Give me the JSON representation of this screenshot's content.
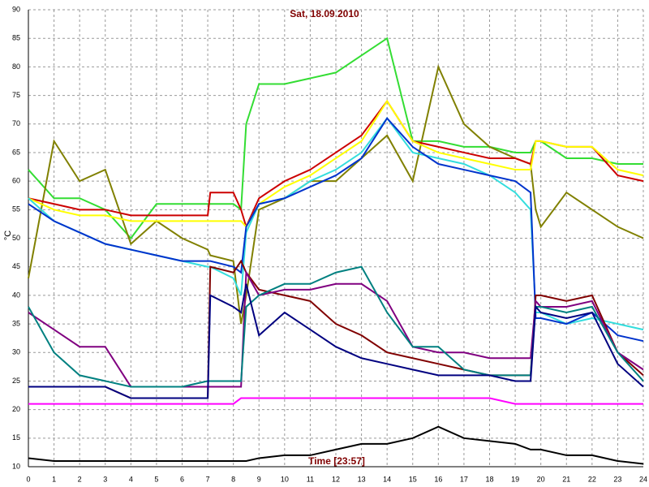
{
  "chart_data": {
    "type": "line",
    "title": "Sat, 18.09.2010",
    "y_label": "°C",
    "x_label": "Time [23:57]",
    "x": [
      0,
      1,
      2,
      3,
      4,
      5,
      6,
      7,
      7.1,
      8,
      8.3,
      8.5,
      9,
      10,
      11,
      12,
      13,
      14,
      15,
      16,
      17,
      18,
      19,
      19.6,
      19.8,
      20,
      21,
      22,
      23,
      24
    ],
    "xlim": [
      0,
      24
    ],
    "xticks": [
      0,
      1,
      2,
      3,
      4,
      5,
      6,
      7,
      8,
      9,
      10,
      11,
      12,
      13,
      14,
      15,
      16,
      17,
      18,
      19,
      20,
      21,
      22,
      23,
      24
    ],
    "ylim": [
      10,
      90
    ],
    "yticks": [
      10,
      15,
      20,
      25,
      30,
      35,
      40,
      45,
      50,
      55,
      60,
      65,
      70,
      75,
      80,
      85,
      90
    ],
    "grid": true,
    "series": [
      {
        "color": "#33dd33",
        "values": [
          62,
          57,
          57,
          55,
          50,
          56,
          56,
          56,
          56,
          56,
          55,
          70,
          77,
          77,
          78,
          79,
          82,
          85,
          67,
          67,
          66,
          66,
          65,
          65,
          67,
          67,
          64,
          64,
          63,
          63
        ]
      },
      {
        "color": "#808000",
        "values": [
          43,
          67,
          60,
          62,
          49,
          53,
          50,
          48,
          47,
          46,
          35,
          40,
          55,
          57,
          60,
          60,
          64,
          68,
          60,
          80,
          70,
          66,
          64,
          63,
          55,
          52,
          58,
          55,
          52,
          50
        ]
      },
      {
        "color": "#cc0000",
        "values": [
          57,
          56,
          55,
          55,
          54,
          54,
          54,
          54,
          58,
          58,
          55,
          52,
          57,
          60,
          62,
          65,
          68,
          74,
          67,
          66,
          65,
          64,
          64,
          63,
          67,
          67,
          66,
          66,
          61,
          60
        ]
      },
      {
        "color": "#ffff00",
        "values": [
          57,
          55,
          54,
          54,
          53,
          53,
          53,
          53,
          53,
          53,
          53,
          52,
          56,
          59,
          61,
          64,
          67,
          74,
          67,
          65,
          64,
          63,
          62,
          62,
          67,
          67,
          66,
          66,
          62,
          61
        ]
      },
      {
        "color": "#33dddd",
        "values": [
          57,
          53,
          51,
          49,
          48,
          47,
          46,
          45,
          45,
          43,
          40,
          51,
          56,
          57,
          60,
          62,
          65,
          71,
          65,
          64,
          63,
          61,
          58,
          55,
          37,
          37,
          35,
          36,
          35,
          34
        ]
      },
      {
        "color": "#0033cc",
        "values": [
          56,
          53,
          51,
          49,
          48,
          47,
          46,
          46,
          46,
          45,
          44,
          52,
          56,
          57,
          59,
          61,
          64,
          71,
          66,
          63,
          62,
          61,
          60,
          58,
          36,
          36,
          35,
          37,
          33,
          32
        ]
      },
      {
        "color": "#800000",
        "values": [
          24,
          24,
          24,
          24,
          22,
          22,
          22,
          22,
          45,
          44,
          46,
          44,
          41,
          40,
          39,
          35,
          33,
          30,
          29,
          28,
          27,
          26,
          26,
          26,
          40,
          40,
          39,
          40,
          30,
          26
        ]
      },
      {
        "color": "#800080",
        "values": [
          37,
          34,
          31,
          31,
          24,
          24,
          24,
          24,
          24,
          24,
          24,
          44,
          40,
          41,
          41,
          42,
          42,
          39,
          31,
          30,
          30,
          29,
          29,
          29,
          39,
          38,
          38,
          39,
          30,
          27
        ]
      },
      {
        "color": "#008080",
        "values": [
          38,
          30,
          26,
          25,
          24,
          24,
          24,
          25,
          25,
          25,
          25,
          38,
          40,
          42,
          42,
          44,
          45,
          37,
          31,
          31,
          27,
          26,
          26,
          26,
          38,
          38,
          37,
          38,
          30,
          25
        ]
      },
      {
        "color": "#000080",
        "values": [
          24,
          24,
          24,
          24,
          22,
          22,
          22,
          22,
          40,
          38,
          37,
          42,
          33,
          37,
          34,
          31,
          29,
          28,
          27,
          26,
          26,
          26,
          25,
          25,
          38,
          37,
          36,
          37,
          28,
          24
        ]
      },
      {
        "color": "#ff00ff",
        "values": [
          21,
          21,
          21,
          21,
          21,
          21,
          21,
          21,
          21,
          21,
          22,
          22,
          22,
          22,
          22,
          22,
          22,
          22,
          22,
          22,
          22,
          22,
          21,
          21,
          21,
          21,
          21,
          21,
          21,
          21
        ]
      },
      {
        "color": "#000000",
        "values": [
          11.5,
          11,
          11,
          11,
          11,
          11,
          11,
          11,
          11,
          11,
          11,
          11,
          11.5,
          12,
          12,
          13,
          14,
          14,
          15,
          17,
          15,
          14.5,
          14,
          13,
          13,
          13,
          12,
          12,
          11,
          10.5
        ]
      }
    ]
  }
}
